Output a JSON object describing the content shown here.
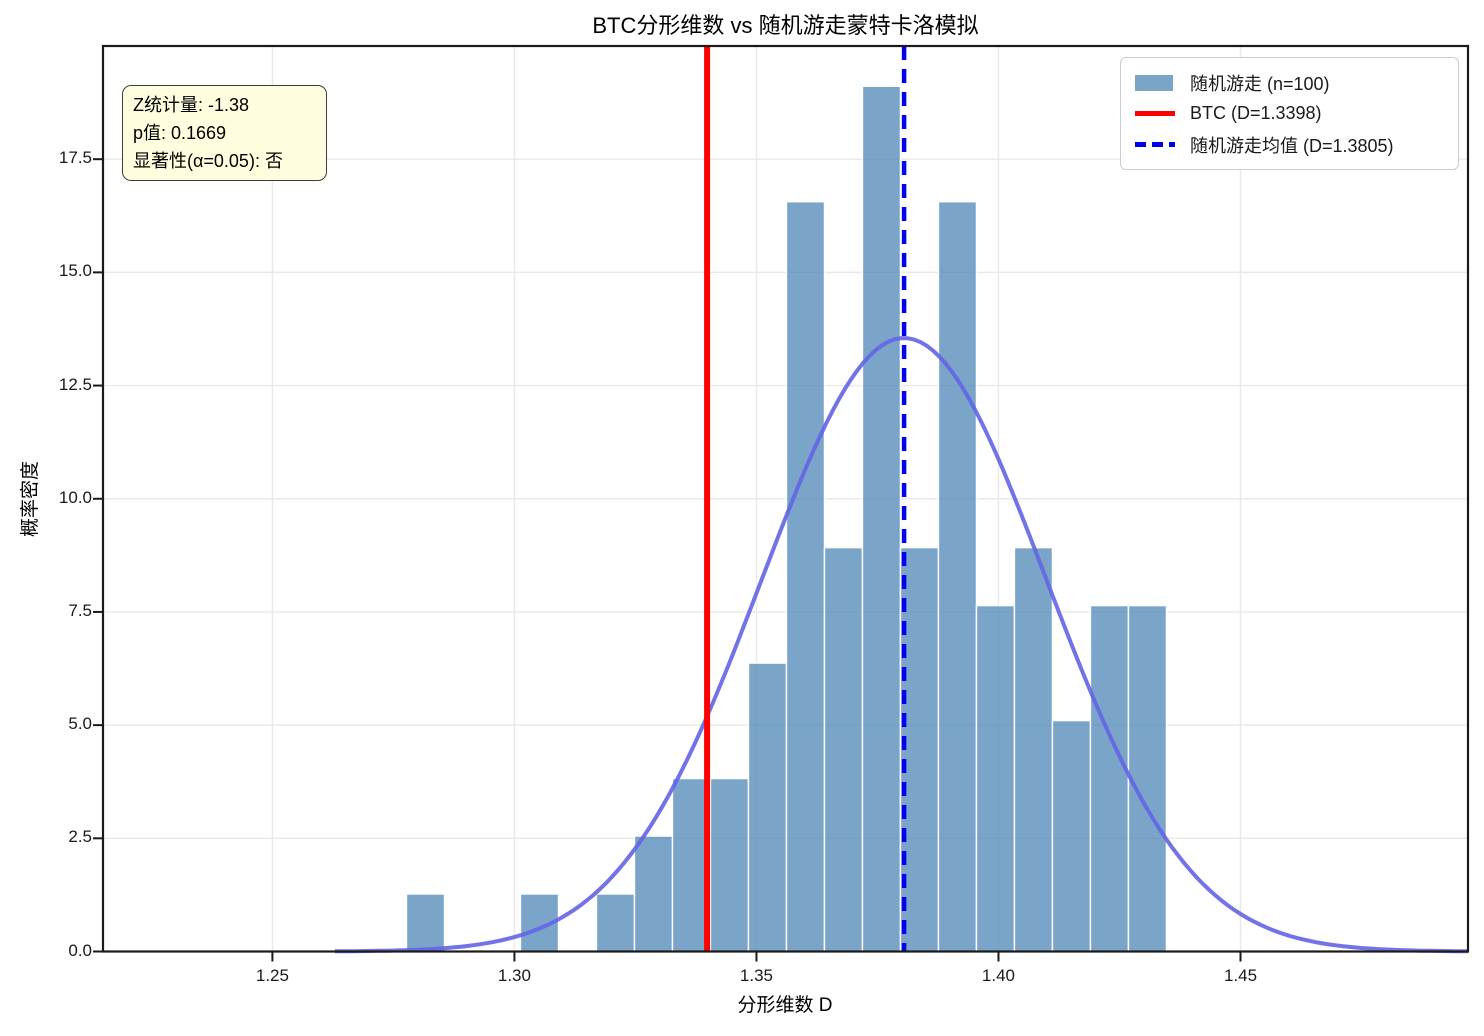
{
  "chart_data": {
    "type": "histogram",
    "title": "BTC分形维数 vs 随机游走蒙特卡洛模拟",
    "xlabel": "分形维数 D",
    "ylabel": "概率密度",
    "xlim": [
      1.215,
      1.497
    ],
    "ylim": [
      0,
      20
    ],
    "grid": true,
    "legend_position": "upper-right",
    "x_ticks": [
      {
        "value": 1.25,
        "label": "1.25"
      },
      {
        "value": 1.3,
        "label": "1.30"
      },
      {
        "value": 1.35,
        "label": "1.35"
      },
      {
        "value": 1.4,
        "label": "1.40"
      },
      {
        "value": 1.45,
        "label": "1.45"
      }
    ],
    "y_ticks": [
      {
        "value": 0,
        "label": "0.0"
      },
      {
        "value": 2.5,
        "label": "2.5"
      },
      {
        "value": 5,
        "label": "5.0"
      },
      {
        "value": 7.5,
        "label": "7.5"
      },
      {
        "value": 10,
        "label": "10.0"
      },
      {
        "value": 12.5,
        "label": "12.5"
      },
      {
        "value": 15,
        "label": "15.0"
      },
      {
        "value": 17.5,
        "label": "17.5"
      }
    ],
    "histogram": {
      "label": "随机游走 (n=100)",
      "n": 100,
      "bin_start": 1.2777,
      "bin_width": 0.00785,
      "counts": [
        1,
        0,
        0,
        1,
        0,
        1,
        2,
        3,
        3,
        5,
        13,
        7,
        15,
        7,
        13,
        6,
        7,
        4,
        6,
        6
      ],
      "density_heights": [
        1.27,
        0,
        0,
        1.27,
        0,
        1.27,
        2.55,
        3.82,
        3.82,
        6.37,
        16.56,
        8.92,
        19.11,
        8.92,
        16.56,
        7.64,
        8.92,
        5.1,
        7.64,
        7.64
      ],
      "fill_color": "#4682b4",
      "fill_opacity": 0.72,
      "edge_color": "#ffffff"
    },
    "normal_fit_curve": {
      "mean": 1.3805,
      "sigma": 0.0294,
      "peak_density": 13.55,
      "x_start": 1.2629,
      "x_end": 1.497,
      "color": "#6464e6"
    },
    "btc_line": {
      "value": 1.3398,
      "style": "solid",
      "color": "#ff0000",
      "legend_label": "BTC (D=1.3398)"
    },
    "mean_line": {
      "value": 1.3805,
      "style": "dashed",
      "color": "#0000ee",
      "legend_label": "随机游走均值 (D=1.3805)"
    },
    "legend": [
      {
        "swatch": "patch",
        "label": "随机游走 (n=100)"
      },
      {
        "swatch": "line-red",
        "label": "BTC (D=1.3398)"
      },
      {
        "swatch": "line-dashed",
        "label": "随机游走均值 (D=1.3805)"
      }
    ],
    "annotation_box": {
      "bg_color": "#ffffe0",
      "lines": [
        "Z统计量: -1.38",
        "p值: 0.1669",
        "显著性(α=0.05): 否"
      ]
    }
  }
}
